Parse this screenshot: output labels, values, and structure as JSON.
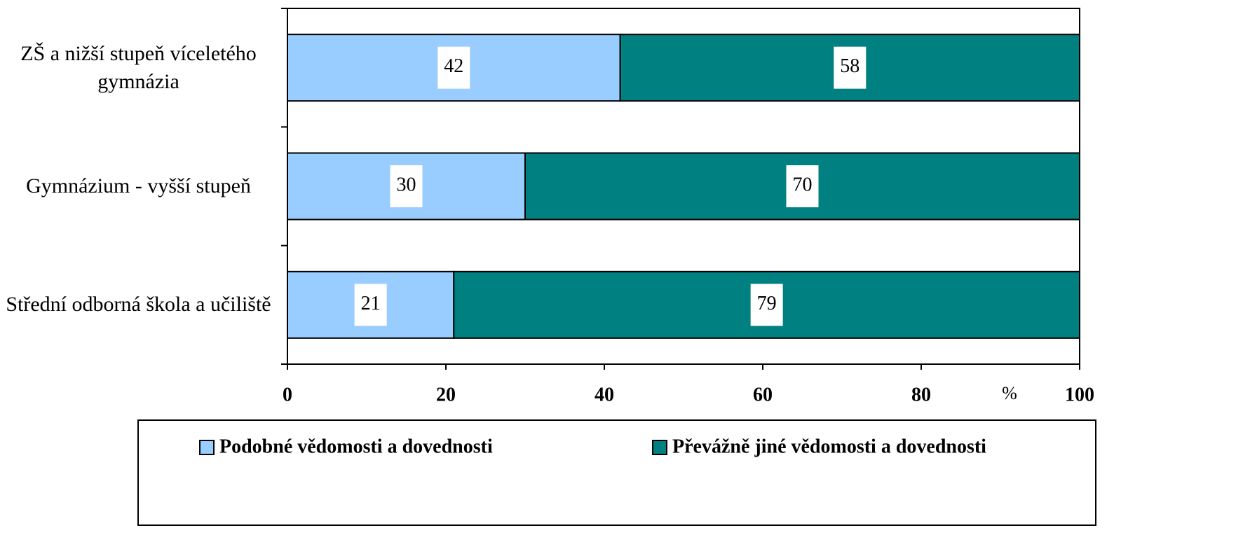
{
  "chart_data": {
    "type": "stacked_bar_horizontal",
    "categories": [
      "ZŠ a nižší stupeň víceletého gymnázia",
      "Gymnázium - vyšší stupeň",
      "Střední odborná škola a učiliště"
    ],
    "series": [
      {
        "name": "Podobné vědomosti a dovednosti",
        "color": "#99ccff",
        "values": [
          42,
          30,
          21
        ]
      },
      {
        "name": "Převážně jiné vědomosti a dovednosti",
        "color": "#008080",
        "values": [
          58,
          70,
          79
        ]
      }
    ],
    "x_label": "%",
    "xlim": [
      0,
      100
    ],
    "xticks": [
      0,
      20,
      40,
      60,
      80,
      100
    ],
    "grid": false,
    "legend": "bottom"
  }
}
